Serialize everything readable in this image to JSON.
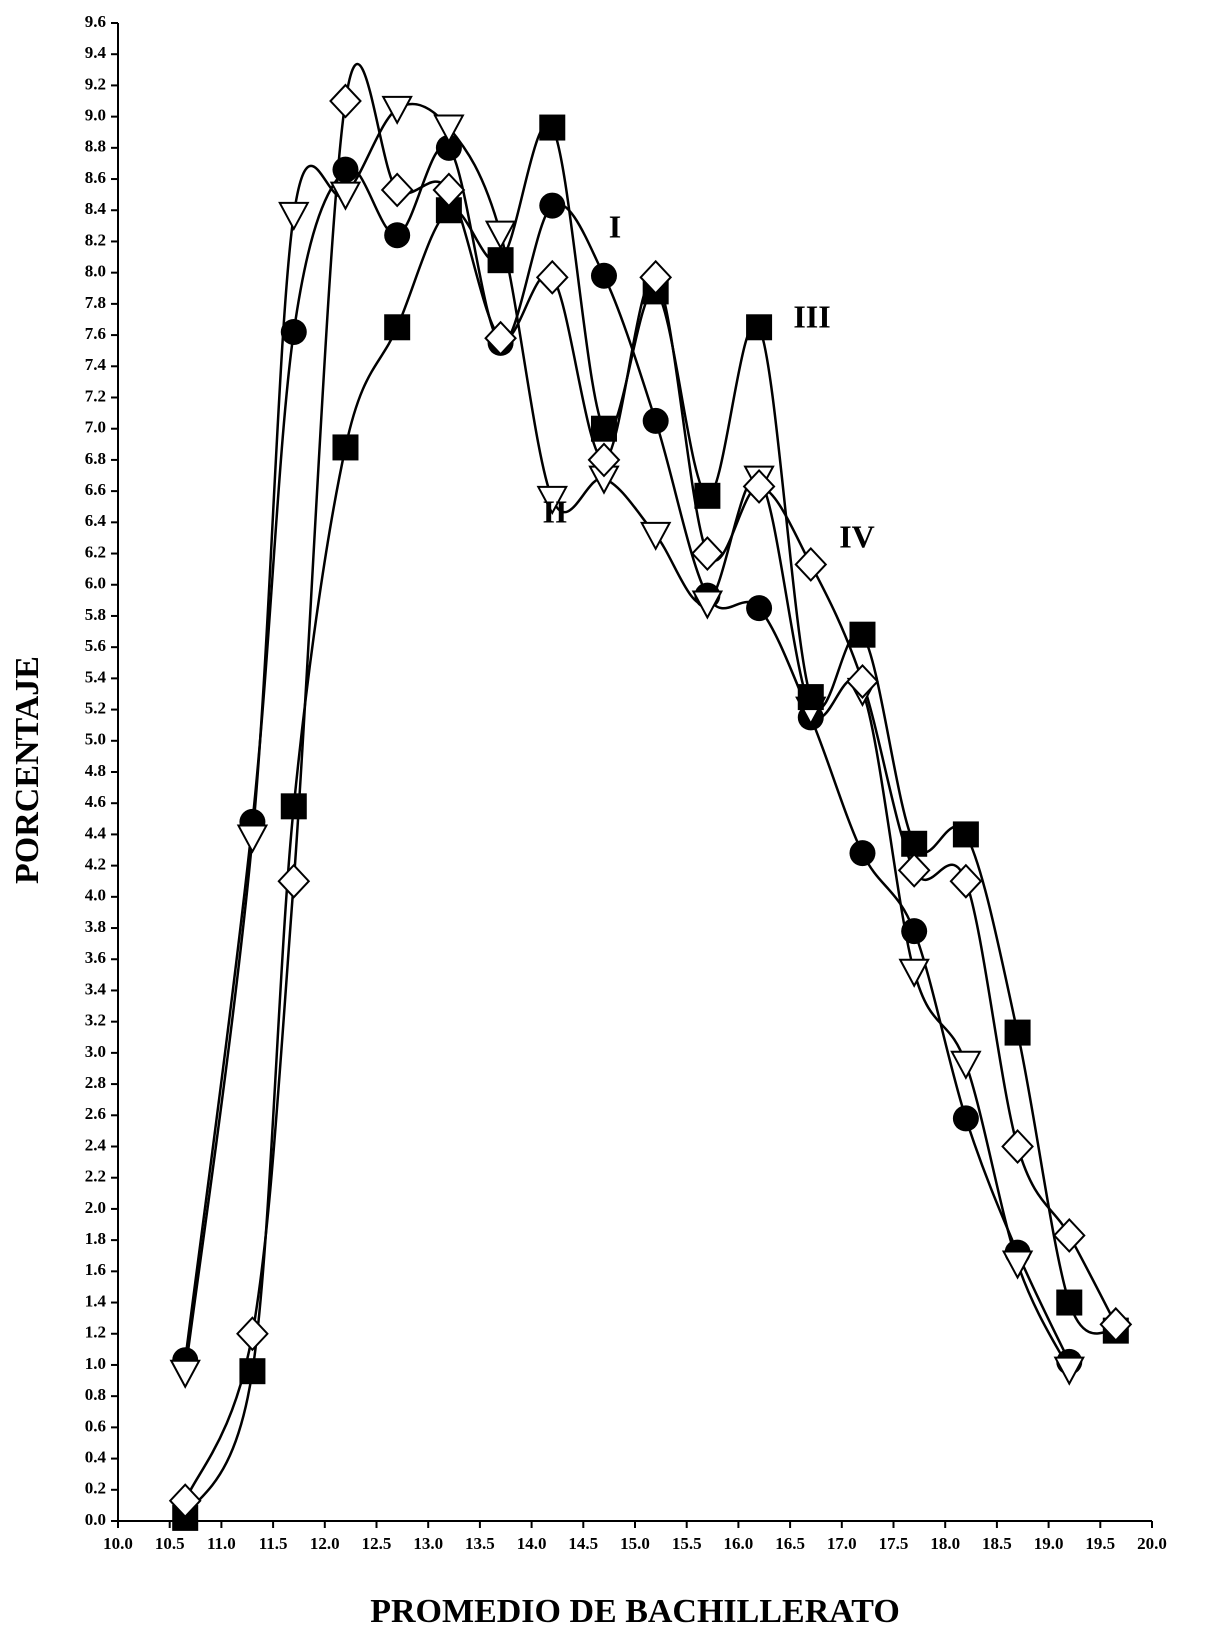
{
  "chart_data": {
    "type": "line",
    "xlabel": "PROMEDIO DE BACHILLERATO",
    "ylabel": "PORCENTAJE",
    "x": [
      10.65,
      11.3,
      11.7,
      12.2,
      12.7,
      13.2,
      13.7,
      14.2,
      14.7,
      15.2,
      15.7,
      16.2,
      16.7,
      17.2,
      17.7,
      18.2,
      18.7,
      19.2,
      19.65
    ],
    "series": [
      {
        "name": "I",
        "color": "#000000",
        "marker": "circle",
        "values": [
          1.03,
          4.48,
          7.62,
          8.66,
          8.24,
          8.8,
          7.55,
          8.43,
          7.98,
          7.05,
          5.93,
          5.85,
          5.15,
          4.28,
          3.78,
          2.58,
          1.72,
          1.02,
          null
        ]
      },
      {
        "name": "II",
        "color": "#000000",
        "marker": "triangle-down",
        "values": [
          0.95,
          4.38,
          8.37,
          8.5,
          9.05,
          8.93,
          8.25,
          6.55,
          6.68,
          6.32,
          5.88,
          6.68,
          5.2,
          5.32,
          3.52,
          2.93,
          1.65,
          0.97,
          null
        ]
      },
      {
        "name": "III",
        "color": "#000000",
        "marker": "square",
        "values": [
          0.02,
          0.96,
          4.58,
          6.88,
          7.65,
          8.4,
          8.08,
          8.93,
          7.0,
          7.88,
          6.57,
          7.65,
          5.28,
          5.68,
          4.34,
          4.4,
          3.13,
          1.4,
          1.22
        ]
      },
      {
        "name": "IV",
        "color": "#000000",
        "marker": "diamond",
        "values": [
          0.13,
          1.2,
          4.1,
          9.1,
          8.53,
          8.53,
          7.58,
          7.97,
          6.8,
          7.97,
          6.2,
          6.63,
          6.13,
          5.38,
          4.17,
          4.1,
          2.4,
          1.83,
          1.26
        ]
      }
    ],
    "xlim": [
      10,
      20
    ],
    "ylim": [
      0,
      9.6
    ],
    "xticks": [
      {
        "value": 10,
        "label": "10.0"
      },
      10.5,
      {
        "value": 11,
        "label": "11.0"
      },
      11.5,
      {
        "value": 12,
        "label": "12.0"
      },
      12.5,
      {
        "value": 13,
        "label": "13.0"
      },
      13.5,
      {
        "value": 14,
        "label": "14.0"
      },
      14.5,
      {
        "value": 15,
        "label": "15.0"
      },
      15.5,
      {
        "value": 16,
        "label": "16.0"
      },
      16.5,
      {
        "value": 17,
        "label": "17.0"
      },
      17.5,
      {
        "value": 18,
        "label": "18.0"
      },
      18.5,
      {
        "value": 19,
        "label": "19.0"
      },
      19.5,
      {
        "value": 20,
        "label": "20.0"
      }
    ],
    "yticks": [
      {
        "value": 0,
        "label": "0.0"
      },
      0.2,
      0.4,
      0.6,
      0.8,
      {
        "value": 1,
        "label": "1.0"
      },
      1.2,
      1.4,
      1.6,
      1.8,
      {
        "value": 2,
        "label": "2.0"
      },
      2.2,
      2.4,
      2.6,
      2.8,
      {
        "value": 3,
        "label": "3.0"
      },
      3.2,
      3.4,
      3.6,
      3.8,
      {
        "value": 4,
        "label": "4.0"
      },
      4.2,
      4.4,
      4.6,
      4.8,
      {
        "value": 5,
        "label": "5.0"
      },
      5.2,
      5.4,
      5.6,
      5.8,
      {
        "value": 6,
        "label": "6.0"
      },
      6.2,
      6.4,
      6.6,
      6.8,
      {
        "value": 7,
        "label": "7.0"
      },
      7.2,
      7.4,
      7.6,
      7.8,
      {
        "value": 8,
        "label": "8.0"
      },
      8.2,
      8.4,
      8.6,
      8.8,
      {
        "value": 9,
        "label": "9.0"
      },
      9.2,
      9.4,
      9.6
    ],
    "grid": false
  }
}
